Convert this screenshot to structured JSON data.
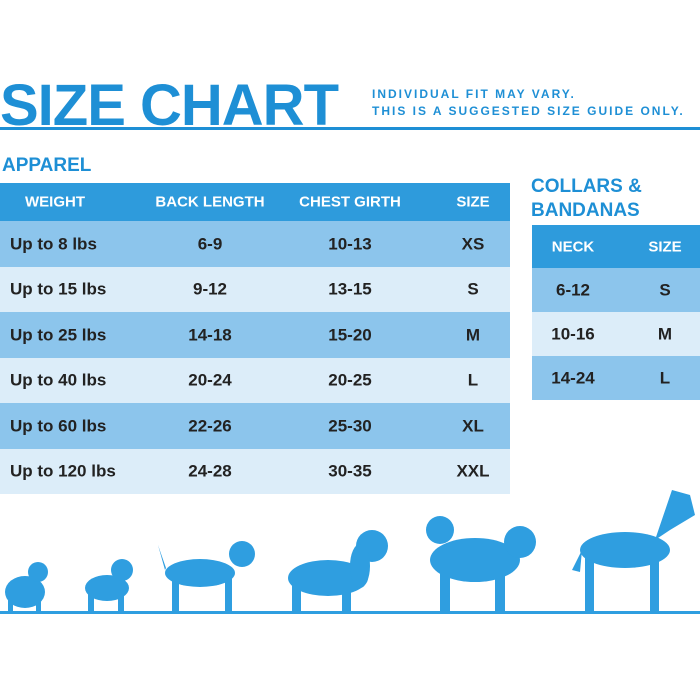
{
  "header": {
    "title": "SIZE CHART",
    "note": [
      "INDIVIDUAL FIT MAY VARY.",
      "THIS IS A SUGGESTED SIZE GUIDE ONLY."
    ]
  },
  "apparel": {
    "title": "APPAREL",
    "columns": [
      "WEIGHT",
      "BACK LENGTH",
      "CHEST GIRTH",
      "SIZE"
    ],
    "rows": [
      [
        "Up to 8 lbs",
        "6-9",
        "10-13",
        "XS"
      ],
      [
        "Up to 15 lbs",
        "9-12",
        "13-15",
        "S"
      ],
      [
        "Up to 25 lbs",
        "14-18",
        "15-20",
        "M"
      ],
      [
        "Up to 40 lbs",
        "20-24",
        "20-25",
        "L"
      ],
      [
        "Up to 60 lbs",
        "22-26",
        "25-30",
        "XL"
      ],
      [
        "Up to 120 lbs",
        "24-28",
        "30-35",
        "XXL"
      ]
    ]
  },
  "collars": {
    "title": [
      "COLLARS &",
      "BANDANAS"
    ],
    "columns": [
      "NECK",
      "SIZE"
    ],
    "rows": [
      [
        "6-12",
        "S"
      ],
      [
        "10-16",
        "M"
      ],
      [
        "14-24",
        "L"
      ]
    ]
  }
}
